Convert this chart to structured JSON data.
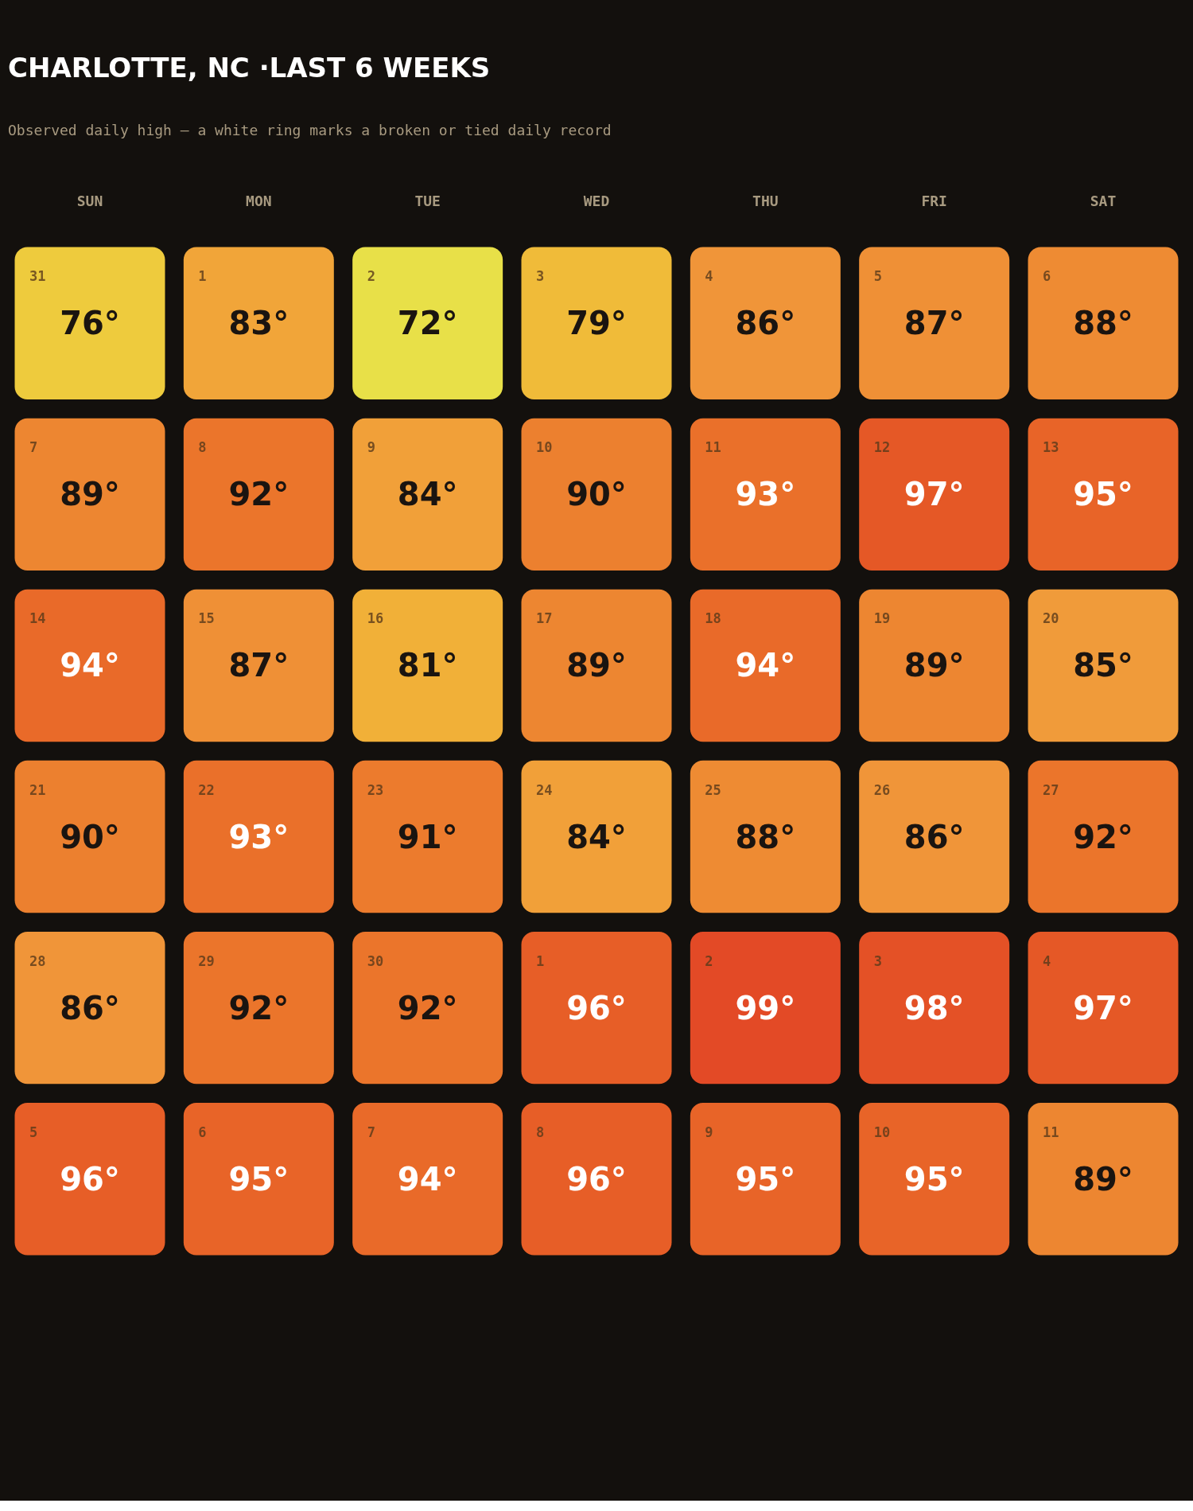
{
  "chart_data": {
    "type": "heatmap",
    "title": "CHARLOTTE, NC ·LAST 6 WEEKS",
    "subtitle": "Observed daily high — a white ring marks a broken or tied daily record",
    "categories": [
      "SUN",
      "MON",
      "TUE",
      "WED",
      "THU",
      "FRI",
      "SAT"
    ],
    "y_categories": [
      null,
      null,
      null,
      null,
      null,
      null
    ],
    "cells": [
      [
        76,
        83,
        72,
        79,
        86,
        87,
        88
      ],
      [
        89,
        92,
        84,
        90,
        93,
        97,
        95
      ],
      [
        94,
        87,
        81,
        89,
        94,
        89,
        85
      ],
      [
        90,
        93,
        91,
        84,
        88,
        86,
        92
      ],
      [
        86,
        92,
        92,
        96,
        99,
        98,
        97
      ],
      [
        96,
        95,
        94,
        96,
        95,
        95,
        89
      ]
    ],
    "cell_labels": [
      [
        "76°",
        "83°",
        "72°",
        "79°",
        "86°",
        "87°",
        "88°"
      ],
      [
        "89°",
        "92°",
        "84°",
        "90°",
        "93°",
        "97°",
        "95°"
      ],
      [
        "94°",
        "87°",
        "81°",
        "89°",
        "94°",
        "89°",
        "85°"
      ],
      [
        "90°",
        "93°",
        "91°",
        "84°",
        "88°",
        "86°",
        "92°"
      ],
      [
        "86°",
        "92°",
        "92°",
        "96°",
        "99°",
        "98°",
        "97°"
      ],
      [
        "96°",
        "95°",
        "94°",
        "96°",
        "95°",
        "95°",
        "89°"
      ]
    ],
    "annotations": [
      "31",
      "1",
      "2",
      "3",
      "4",
      "5",
      "6",
      "7",
      "8",
      "9",
      "10",
      "11",
      "12",
      "13",
      "14",
      "15",
      "16",
      "17",
      "18",
      "19",
      "20",
      "21",
      "22",
      "23",
      "24",
      "25",
      "26",
      "27",
      "28",
      "29",
      "30",
      "1",
      "2",
      "3",
      "4",
      "5",
      "6",
      "7",
      "8",
      "9",
      "10",
      "11"
    ]
  }
}
